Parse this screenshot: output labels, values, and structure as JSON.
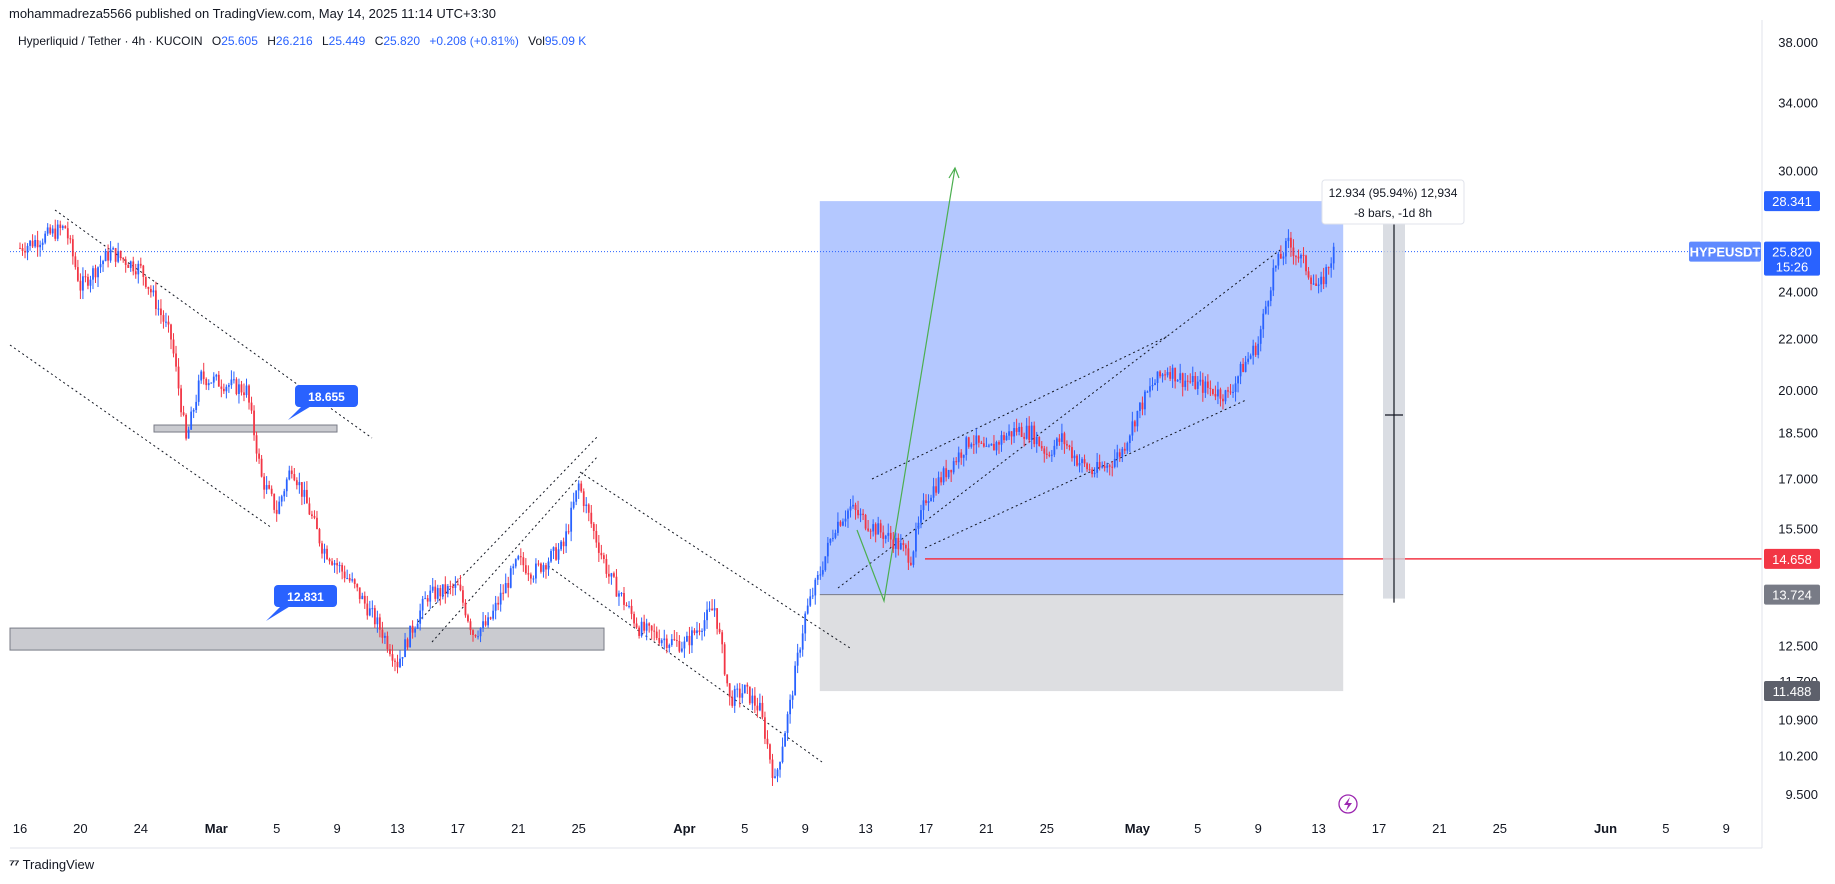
{
  "header": {
    "published_line": "mohammadreza5566 published on TradingView.com, May 14, 2025 11:14 UTC+3:30"
  },
  "legend": {
    "symbol_line": "Hyperliquid / Tether · 4h · KUCOIN",
    "open_label": "O",
    "open": "25.605",
    "high_label": "H",
    "high": "26.216",
    "low_label": "L",
    "low": "25.449",
    "close_label": "C",
    "close": "25.820",
    "change": "+0.208 (+0.81%)",
    "vol_label": "Vol",
    "volume": "95.09 K"
  },
  "footer": {
    "brand": "TradingView"
  },
  "colors": {
    "up": "#2962ff",
    "down": "#f23645",
    "position_target": "#2962ff",
    "position_stop": "#787b86",
    "red_line": "#f23645"
  },
  "chart_data": {
    "type": "candlestick",
    "symbol": "HYPEUSDT",
    "timeframe": "4h",
    "scale": "log",
    "x_ticks": [
      "16",
      "20",
      "24",
      "Mar",
      "5",
      "9",
      "13",
      "17",
      "21",
      "25",
      "Apr",
      "5",
      "9",
      "13",
      "17",
      "21",
      "25",
      "May",
      "5",
      "9",
      "13",
      "17",
      "21",
      "25",
      "Jun",
      "5",
      "9"
    ],
    "y_ticks": [
      "38.000",
      "34.000",
      "30.000",
      "24.000",
      "22.000",
      "20.000",
      "18.500",
      "17.000",
      "15.500",
      "12.500",
      "11.700",
      "10.900",
      "10.200",
      "9.500"
    ],
    "ylim": [
      9.1,
      39.5
    ],
    "price_path": [
      [
        "Feb 16",
        26.0
      ],
      [
        "Feb 19",
        27.0
      ],
      [
        "Feb 20",
        24.2
      ],
      [
        "Feb 22",
        25.8
      ],
      [
        "Feb 24",
        25.0
      ],
      [
        "Feb 26",
        22.0
      ],
      [
        "Feb 27",
        18.2
      ],
      [
        "Feb 28",
        20.5
      ],
      [
        "Mar 3",
        20.0
      ],
      [
        "Mar 4",
        17.0
      ],
      [
        "Mar 5",
        16.0
      ],
      [
        "Mar 6",
        17.4
      ],
      [
        "Mar 8",
        15.0
      ],
      [
        "Mar 10",
        14.0
      ],
      [
        "Mar 12",
        12.8
      ],
      [
        "Mar 13",
        12.1
      ],
      [
        "Mar 15",
        13.7
      ],
      [
        "Mar 17",
        13.9
      ],
      [
        "Mar 18",
        12.8
      ],
      [
        "Mar 19",
        13.0
      ],
      [
        "Mar 21",
        14.6
      ],
      [
        "Mar 22",
        14.3
      ],
      [
        "Mar 24",
        15.0
      ],
      [
        "Mar 25",
        16.8
      ],
      [
        "Mar 26",
        15.4
      ],
      [
        "Mar 27",
        14.2
      ],
      [
        "Mar 29",
        12.9
      ],
      [
        "Mar 31",
        12.6
      ],
      [
        "Apr 1",
        12.5
      ],
      [
        "Apr 3",
        13.4
      ],
      [
        "Apr 4",
        11.3
      ],
      [
        "Apr 5",
        11.5
      ],
      [
        "Apr 6",
        11.1
      ],
      [
        "Apr 7",
        9.7
      ],
      [
        "Apr 8",
        11.2
      ],
      [
        "Apr 9",
        13.2
      ],
      [
        "Apr 10",
        14.3
      ],
      [
        "Apr 11",
        15.6
      ],
      [
        "Apr 12",
        16.1
      ],
      [
        "Apr 13",
        15.7
      ],
      [
        "Apr 15",
        15.1
      ],
      [
        "Apr 16",
        14.7
      ],
      [
        "Apr 17",
        16.4
      ],
      [
        "Apr 18",
        17.0
      ],
      [
        "Apr 20",
        18.3
      ],
      [
        "Apr 21",
        17.8
      ],
      [
        "Apr 22",
        18.3
      ],
      [
        "Apr 23",
        18.6
      ],
      [
        "Apr 24",
        18.5
      ],
      [
        "Apr 25",
        17.8
      ],
      [
        "Apr 26",
        18.3
      ],
      [
        "Apr 27",
        17.6
      ],
      [
        "Apr 28",
        17.2
      ],
      [
        "Apr 29",
        17.4
      ],
      [
        "Apr 30",
        17.9
      ],
      [
        "May 1",
        19.2
      ],
      [
        "May 2",
        20.2
      ],
      [
        "May 3",
        20.8
      ],
      [
        "May 4",
        20.4
      ],
      [
        "May 6",
        20.0
      ],
      [
        "May 7",
        19.8
      ],
      [
        "May 8",
        20.9
      ],
      [
        "May 9",
        21.8
      ],
      [
        "May 10",
        24.9
      ],
      [
        "May 11",
        26.2
      ],
      [
        "May 12",
        25.3
      ],
      [
        "May 13",
        24.0
      ],
      [
        "May 14",
        25.8
      ]
    ],
    "levels": [
      {
        "name": "resistance-box",
        "value": "18.655"
      },
      {
        "name": "support-box",
        "value": "12.831"
      },
      {
        "name": "stop-line",
        "value": "14.658"
      }
    ],
    "position_tool": {
      "target": "28.341",
      "entry": "13.724",
      "stop": "11.488"
    },
    "last_price": {
      "symbol_tag": "HYPEUSDT",
      "price": "25.820",
      "countdown": "15:26"
    },
    "measure_label": {
      "line1": "12.934 (95.94%) 12,934",
      "line2": "-8 bars, -1d 8h"
    }
  }
}
